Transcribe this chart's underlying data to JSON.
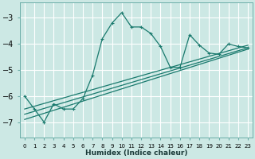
{
  "xlabel": "Humidex (Indice chaleur)",
  "ylabel": "",
  "background_color": "#cce8e4",
  "grid_color": "#ffffff",
  "line_color": "#1a7a6e",
  "xlim": [
    -0.5,
    23.5
  ],
  "ylim": [
    -7.6,
    -2.4
  ],
  "yticks": [
    -7,
    -6,
    -5,
    -4,
    -3
  ],
  "xticks": [
    0,
    1,
    2,
    3,
    4,
    5,
    6,
    7,
    8,
    9,
    10,
    11,
    12,
    13,
    14,
    15,
    16,
    17,
    18,
    19,
    20,
    21,
    22,
    23
  ],
  "series1_x": [
    0,
    1,
    2,
    3,
    4,
    5,
    6,
    7,
    8,
    9,
    10,
    11,
    12,
    13,
    14,
    15,
    16,
    17,
    18,
    19,
    20,
    21,
    22,
    23
  ],
  "series1_y": [
    -6.0,
    -6.5,
    -7.0,
    -6.3,
    -6.5,
    -6.5,
    -6.1,
    -5.2,
    -3.8,
    -3.2,
    -2.8,
    -3.35,
    -3.35,
    -3.6,
    -4.1,
    -4.9,
    -4.9,
    -3.65,
    -4.05,
    -4.35,
    -4.4,
    -4.0,
    -4.1,
    -4.15
  ],
  "line2_x": [
    0,
    23
  ],
  "line2_y": [
    -6.5,
    -4.05
  ],
  "line3_x": [
    0,
    23
  ],
  "line3_y": [
    -6.7,
    -4.15
  ],
  "line4_x": [
    0,
    23
  ],
  "line4_y": [
    -6.9,
    -4.2
  ]
}
